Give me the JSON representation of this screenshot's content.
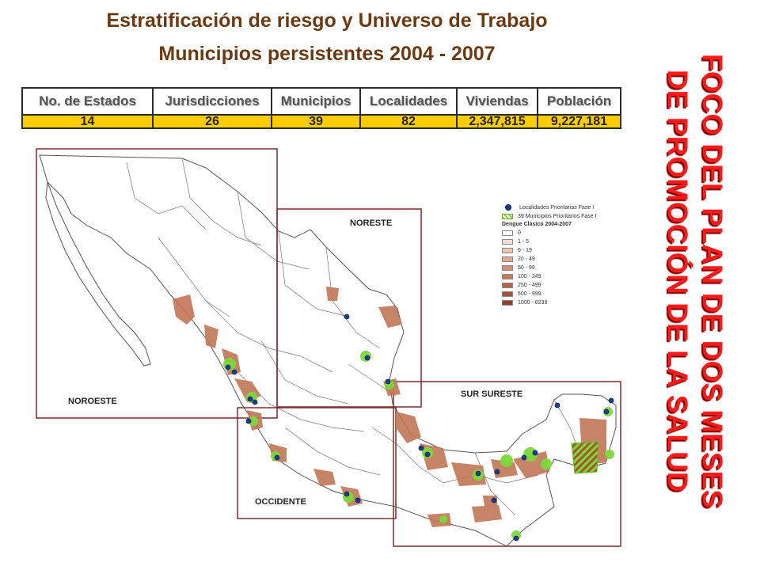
{
  "title": {
    "line1": "Estratificación de riesgo y Universo de Trabajo",
    "line2": "Municipios persistentes 2004 - 2007"
  },
  "side_title": {
    "line1": "FOCO DEL PLAN DE DOS MESES",
    "line2": "DE PROMOCIÓN DE LA SALUD"
  },
  "stats_table": {
    "headers": [
      "No. de Estados",
      "Jurisdicciones",
      "Municipios",
      "Localidades",
      "Viviendas",
      "Población"
    ],
    "values": [
      "14",
      "26",
      "39",
      "82",
      "2,347,815",
      "9,227,181"
    ]
  },
  "map": {
    "regions": [
      "NOROESTE",
      "NORESTE",
      "OCCIDENTE",
      "SUR SURESTE"
    ],
    "legend": {
      "localities": "Localidades Prioritarias Fase I",
      "municipalities": "39 Municipios Prioritarios Fase I",
      "dengue_title": "Dengue Clasico 2004-2007",
      "classes": [
        {
          "label": "0",
          "color": "#ffffff"
        },
        {
          "label": "1 - 5",
          "color": "#f6ddcf"
        },
        {
          "label": "6 - 19",
          "color": "#efc5ad"
        },
        {
          "label": "20 - 49",
          "color": "#e3a98b"
        },
        {
          "label": "50 - 99",
          "color": "#d68e6e"
        },
        {
          "label": "100 - 249",
          "color": "#c97a58"
        },
        {
          "label": "250 - 499",
          "color": "#b46448"
        },
        {
          "label": "500 - 999",
          "color": "#a3513a"
        },
        {
          "label": "1000 - 8239",
          "color": "#8f3f2c"
        }
      ]
    },
    "colors": {
      "region_border": "#7a2e2e",
      "state_border": "#555555",
      "dengue": "#c27656",
      "priority_municipality": "#7cd93c",
      "locality_dot": "#1b3f8f"
    }
  }
}
